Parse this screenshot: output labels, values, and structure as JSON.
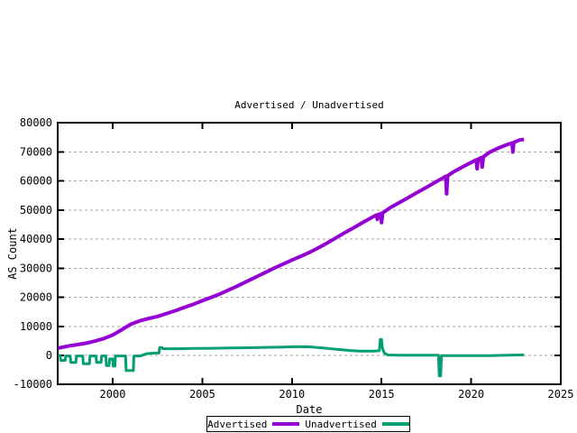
{
  "chart_data": {
    "type": "line",
    "title": "Advertised / Unadvertised",
    "xlabel": "Date",
    "ylabel": "AS Count",
    "xlim": [
      1996.93,
      2025
    ],
    "ylim": [
      -10000,
      80000
    ],
    "x_ticks": [
      2000,
      2005,
      2010,
      2015,
      2020,
      2025
    ],
    "y_ticks": [
      -10000,
      0,
      10000,
      20000,
      30000,
      40000,
      50000,
      60000,
      70000,
      80000
    ],
    "grid": "horizontal dashed gray lines at every y tick, no vertical gridlines",
    "legend_position": "boxed, centered below x-axis label",
    "background_color": "#ffffff",
    "border_color": "#000000",
    "grid_color": "#a6a6a6",
    "series": [
      {
        "name": "Advertised",
        "color": "#9400d3",
        "points": [
          [
            1996.95,
            2500
          ],
          [
            1997.5,
            3200
          ],
          [
            1998,
            3700
          ],
          [
            1998.5,
            4200
          ],
          [
            1999,
            4900
          ],
          [
            1999.5,
            5800
          ],
          [
            2000,
            7000
          ],
          [
            2000.5,
            8800
          ],
          [
            2001,
            10700
          ],
          [
            2001.5,
            11900
          ],
          [
            2002,
            12700
          ],
          [
            2002.5,
            13400
          ],
          [
            2003,
            14400
          ],
          [
            2003.5,
            15400
          ],
          [
            2004,
            16500
          ],
          [
            2004.5,
            17600
          ],
          [
            2005,
            18800
          ],
          [
            2005.5,
            20000
          ],
          [
            2006,
            21200
          ],
          [
            2006.5,
            22600
          ],
          [
            2007,
            24000
          ],
          [
            2007.5,
            25500
          ],
          [
            2008,
            27000
          ],
          [
            2008.5,
            28500
          ],
          [
            2009,
            30000
          ],
          [
            2009.5,
            31400
          ],
          [
            2010,
            32800
          ],
          [
            2010.5,
            34100
          ],
          [
            2011,
            35500
          ],
          [
            2011.5,
            37100
          ],
          [
            2012,
            38800
          ],
          [
            2012.5,
            40600
          ],
          [
            2013,
            42400
          ],
          [
            2013.5,
            44100
          ],
          [
            2014,
            45900
          ],
          [
            2014.5,
            47600
          ],
          [
            2014.72,
            48300
          ],
          [
            2014.77,
            46800
          ],
          [
            2014.82,
            48400
          ],
          [
            2014.95,
            48800
          ],
          [
            2015.0,
            45700
          ],
          [
            2015.06,
            49000
          ],
          [
            2015.5,
            50900
          ],
          [
            2016,
            52600
          ],
          [
            2016.5,
            54300
          ],
          [
            2017,
            56100
          ],
          [
            2017.5,
            57800
          ],
          [
            2018,
            59600
          ],
          [
            2018.5,
            61300
          ],
          [
            2018.58,
            61600
          ],
          [
            2018.63,
            55600
          ],
          [
            2018.68,
            61800
          ],
          [
            2019,
            63100
          ],
          [
            2019.5,
            64800
          ],
          [
            2020,
            66400
          ],
          [
            2020.28,
            67300
          ],
          [
            2020.33,
            64200
          ],
          [
            2020.38,
            67500
          ],
          [
            2020.55,
            68000
          ],
          [
            2020.62,
            64800
          ],
          [
            2020.68,
            68300
          ],
          [
            2021,
            69800
          ],
          [
            2021.5,
            71300
          ],
          [
            2022,
            72500
          ],
          [
            2022.28,
            73100
          ],
          [
            2022.33,
            70000
          ],
          [
            2022.38,
            73300
          ],
          [
            2022.7,
            74100
          ],
          [
            2022.95,
            74300
          ]
        ]
      },
      {
        "name": "Unadvertised",
        "color": "#009e73",
        "points": [
          [
            1996.95,
            100
          ],
          [
            1997.07,
            -200
          ],
          [
            1997.1,
            -1700
          ],
          [
            1997.35,
            -1700
          ],
          [
            1997.38,
            -200
          ],
          [
            1997.63,
            -200
          ],
          [
            1997.66,
            -2400
          ],
          [
            1997.95,
            -2400
          ],
          [
            1997.98,
            -200
          ],
          [
            1998.33,
            -200
          ],
          [
            1998.36,
            -2900
          ],
          [
            1998.7,
            -2900
          ],
          [
            1998.73,
            -200
          ],
          [
            1999.07,
            -200
          ],
          [
            1999.1,
            -2400
          ],
          [
            1999.35,
            -2400
          ],
          [
            1999.38,
            -200
          ],
          [
            1999.62,
            -200
          ],
          [
            1999.65,
            -3500
          ],
          [
            1999.8,
            -3500
          ],
          [
            1999.83,
            -1200
          ],
          [
            2000.0,
            -1200
          ],
          [
            2000.03,
            -3700
          ],
          [
            2000.12,
            -3700
          ],
          [
            2000.15,
            -200
          ],
          [
            2000.72,
            -200
          ],
          [
            2000.75,
            -5200
          ],
          [
            2001.15,
            -5200
          ],
          [
            2001.18,
            -200
          ],
          [
            2001.55,
            -200
          ],
          [
            2001.9,
            600
          ],
          [
            2002.3,
            800
          ],
          [
            2002.58,
            800
          ],
          [
            2002.62,
            2700
          ],
          [
            2002.75,
            2700
          ],
          [
            2002.8,
            2300
          ],
          [
            2003.5,
            2300
          ],
          [
            2004.5,
            2400
          ],
          [
            2005.5,
            2450
          ],
          [
            2006.5,
            2550
          ],
          [
            2007.5,
            2650
          ],
          [
            2008.5,
            2750
          ],
          [
            2009.5,
            2900
          ],
          [
            2010.3,
            3050
          ],
          [
            2011,
            2950
          ],
          [
            2011.8,
            2500
          ],
          [
            2012.5,
            2100
          ],
          [
            2013.2,
            1700
          ],
          [
            2013.8,
            1500
          ],
          [
            2014.6,
            1500
          ],
          [
            2014.88,
            1600
          ],
          [
            2014.93,
            5500
          ],
          [
            2015.0,
            5500
          ],
          [
            2015.05,
            2500
          ],
          [
            2015.15,
            800
          ],
          [
            2015.35,
            150
          ],
          [
            2016,
            80
          ],
          [
            2017,
            80
          ],
          [
            2018.18,
            60
          ],
          [
            2018.22,
            -7000
          ],
          [
            2018.3,
            -7000
          ],
          [
            2018.34,
            -50
          ],
          [
            2019.5,
            -60
          ],
          [
            2021,
            -50
          ],
          [
            2022,
            60
          ],
          [
            2022.95,
            200
          ]
        ]
      }
    ]
  }
}
